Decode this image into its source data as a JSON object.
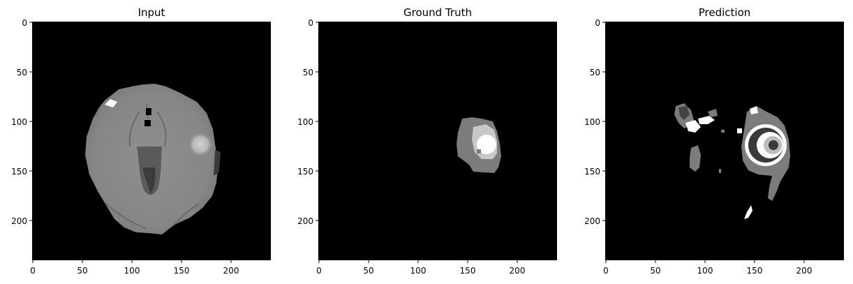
{
  "figure": {
    "panels": [
      {
        "title": "Input",
        "xticks": [
          "0",
          "50",
          "100",
          "150",
          "200"
        ],
        "yticks": [
          "0",
          "50",
          "100",
          "150",
          "200"
        ]
      },
      {
        "title": "Ground Truth",
        "xticks": [
          "0",
          "50",
          "100",
          "150",
          "200"
        ],
        "yticks": [
          "0",
          "50",
          "100",
          "150",
          "200"
        ]
      },
      {
        "title": "Prediction",
        "xticks": [
          "0",
          "50",
          "100",
          "150",
          "200"
        ],
        "yticks": [
          "0",
          "50",
          "100",
          "150",
          "200"
        ]
      }
    ],
    "tick_values": [
      0,
      50,
      100,
      150,
      200
    ],
    "image_extent": [
      0,
      240
    ],
    "colors": {
      "background": "#000000",
      "brain_tissue": "#8a8a8a",
      "lesion_edema": "#7c7c7c",
      "lesion_core": "#c8c8c8",
      "lesion_enhancing": "#ffffff"
    }
  }
}
